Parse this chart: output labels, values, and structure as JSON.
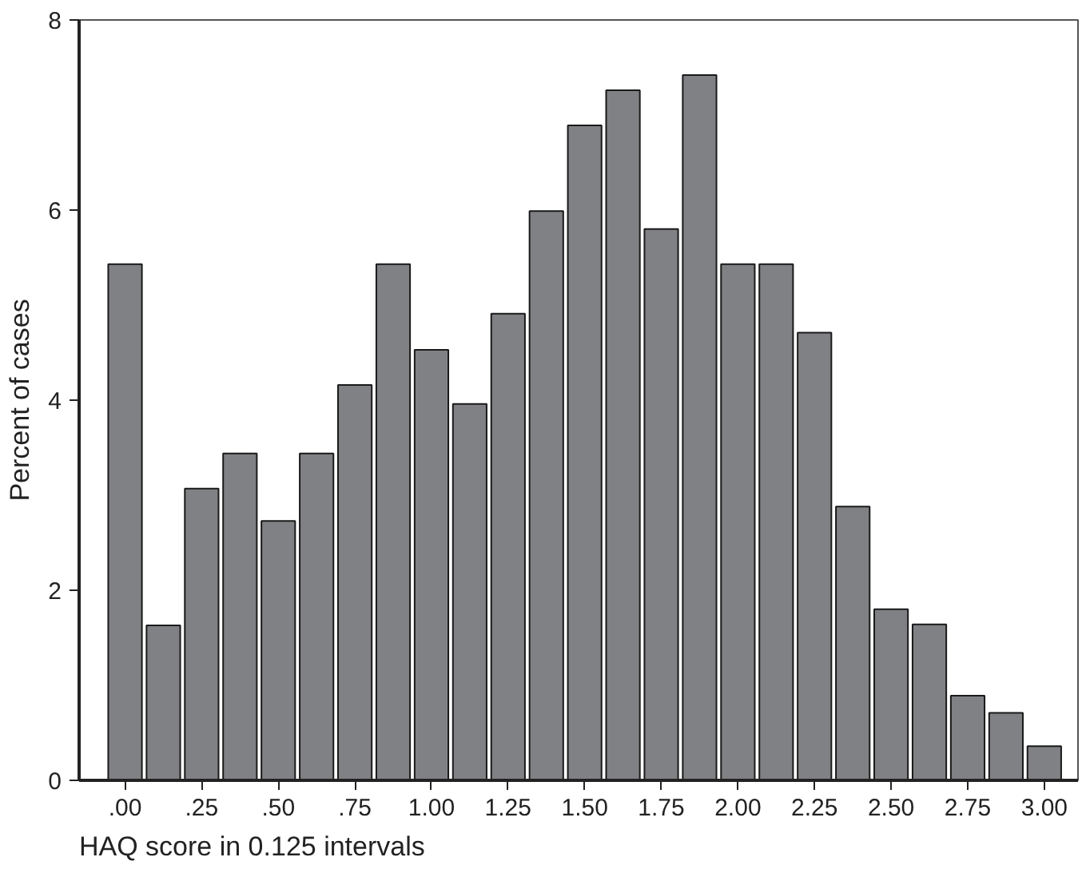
{
  "chart_data": {
    "type": "bar",
    "xlabel": "HAQ score in 0.125 intervals",
    "ylabel": "Percent of cases",
    "x": [
      0,
      0.125,
      0.25,
      0.375,
      0.5,
      0.625,
      0.75,
      0.875,
      1.0,
      1.125,
      1.25,
      1.375,
      1.5,
      1.625,
      1.75,
      1.875,
      2.0,
      2.125,
      2.25,
      2.375,
      2.5,
      2.625,
      2.75,
      2.875,
      3.0
    ],
    "values": [
      5.43,
      1.63,
      3.07,
      3.44,
      2.73,
      3.44,
      4.16,
      5.43,
      4.53,
      3.96,
      4.91,
      5.99,
      6.89,
      7.26,
      5.8,
      7.42,
      5.43,
      5.43,
      4.71,
      2.88,
      1.8,
      1.64,
      0.89,
      0.71,
      0.36
    ],
    "color": "#808184",
    "xlim": [
      -0.15,
      3.11
    ],
    "xticks": [
      {
        "value": 0,
        "label": ".00"
      },
      {
        "value": 0.25,
        "label": ".25"
      },
      {
        "value": 0.5,
        "label": ".50"
      },
      {
        "value": 0.75,
        "label": ".75"
      },
      {
        "value": 1.0,
        "label": "1.00"
      },
      {
        "value": 1.25,
        "label": "1.25"
      },
      {
        "value": 1.5,
        "label": "1.50"
      },
      {
        "value": 1.75,
        "label": "1.75"
      },
      {
        "value": 2.0,
        "label": "2.00"
      },
      {
        "value": 2.25,
        "label": "2.25"
      },
      {
        "value": 2.5,
        "label": "2.50"
      },
      {
        "value": 2.75,
        "label": "2.75"
      },
      {
        "value": 3.0,
        "label": "3.00"
      }
    ],
    "ylim": [
      0,
      8
    ],
    "yticks": [
      0,
      2,
      4,
      6,
      8
    ],
    "grid": false
  }
}
